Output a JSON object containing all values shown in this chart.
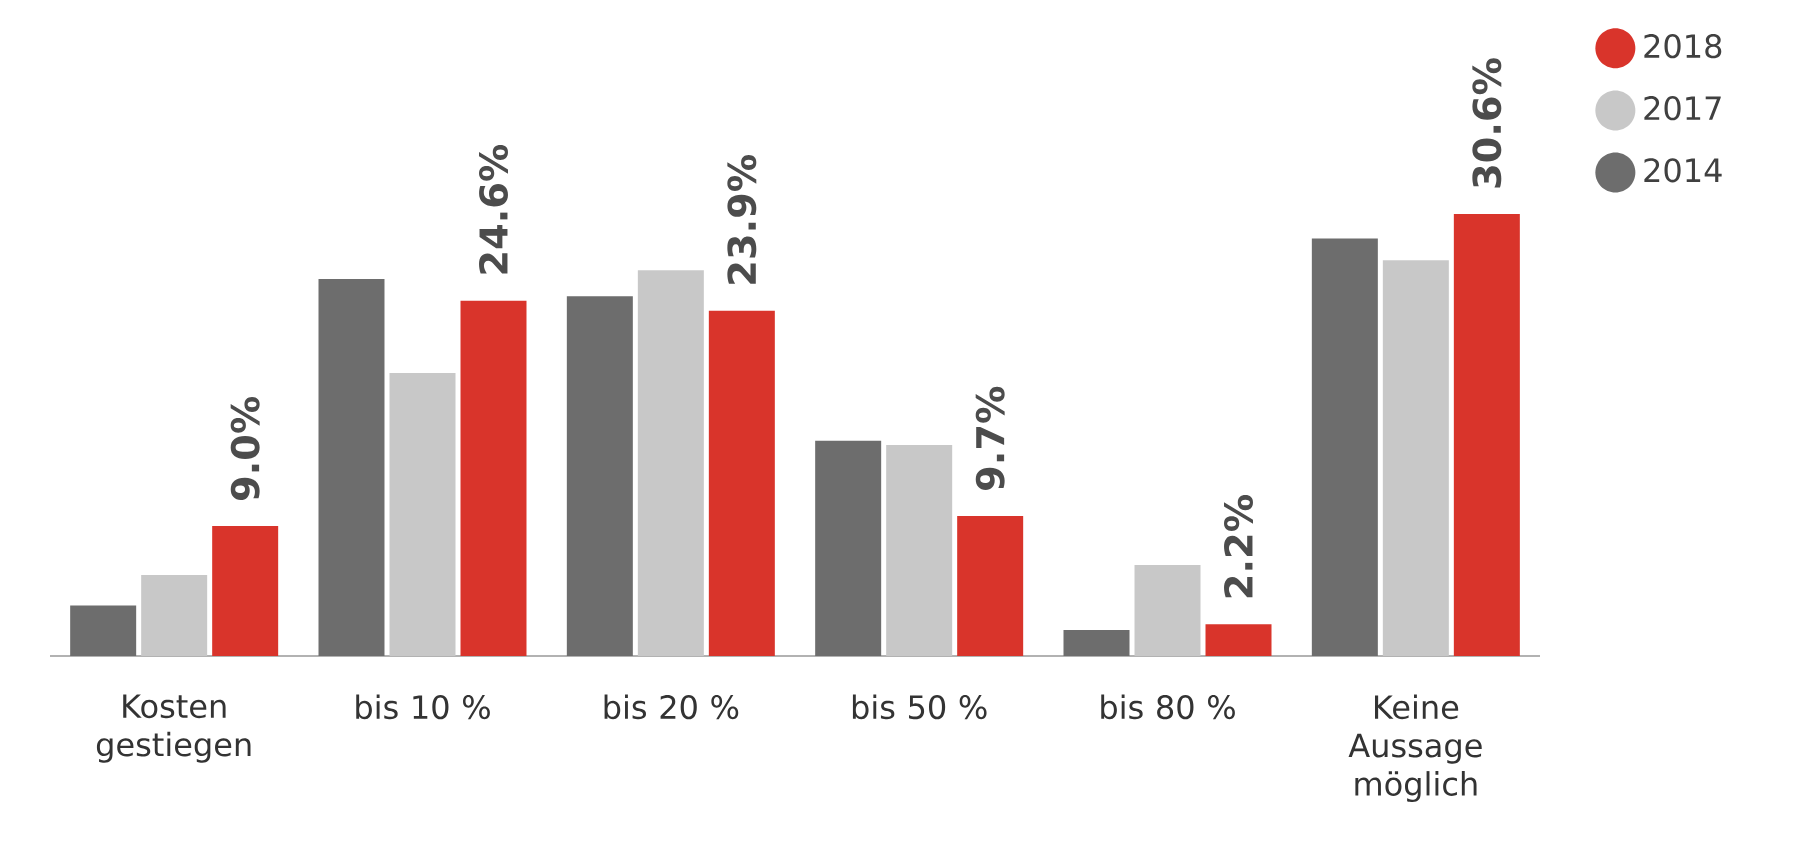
{
  "chart_data": {
    "type": "bar",
    "categories": [
      "Kosten gestiegen",
      "bis 10 %",
      "bis 20 %",
      "bis 50 %",
      "bis 80 %",
      "Keine Aussage möglich"
    ],
    "series": [
      {
        "name": "2014",
        "color": "#6d6d6d",
        "values": [
          3.5,
          26.1,
          24.9,
          14.9,
          1.8,
          28.9
        ]
      },
      {
        "name": "2017",
        "color": "#c8c8c8",
        "values": [
          5.6,
          19.6,
          26.7,
          14.6,
          6.3,
          27.4
        ]
      },
      {
        "name": "2018",
        "color": "#d9342b",
        "values": [
          9.0,
          24.6,
          23.9,
          9.7,
          2.2,
          30.6
        ],
        "value_labels": [
          "9.0%",
          "24.6%",
          "23.9%",
          "9.7%",
          "2.2%",
          "30.6%"
        ]
      }
    ],
    "legend": "top right"
  }
}
